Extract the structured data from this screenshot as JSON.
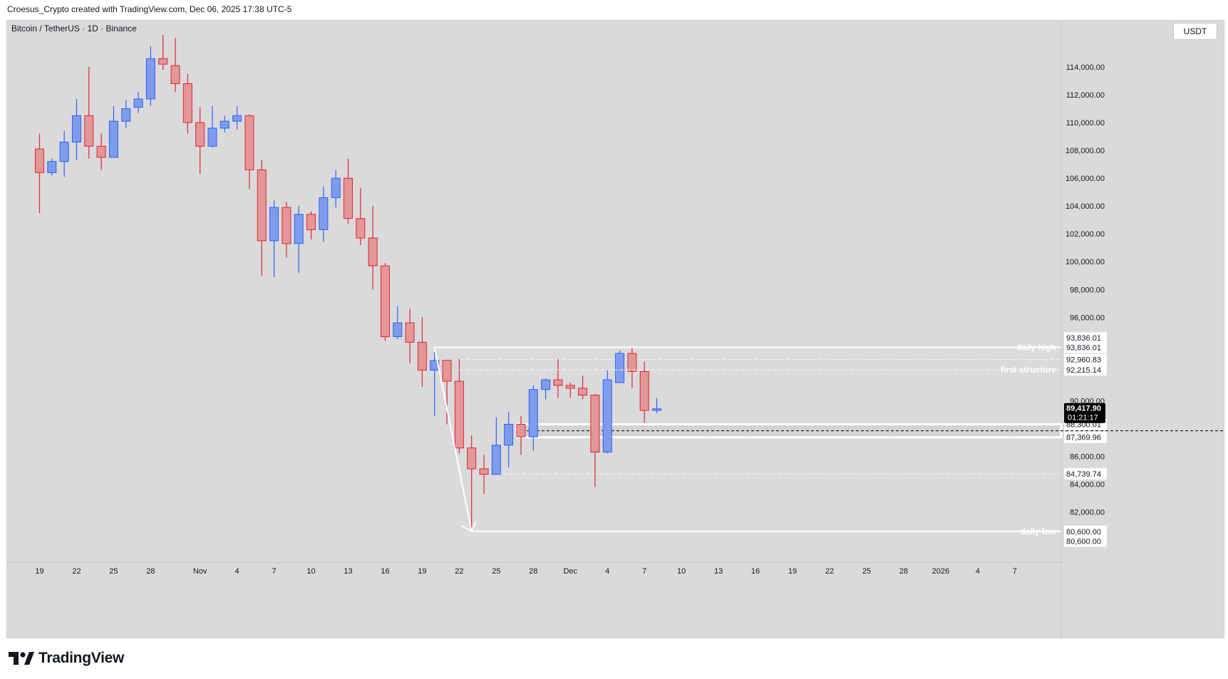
{
  "header": {
    "attribution": "Croesus_Crypto created with TradingView.com, Dec 06, 2025 17:38 UTC-5"
  },
  "symbol": {
    "label": "Bitcoin / TetherUS · 1D · Binance"
  },
  "currency": "USDT",
  "brand": {
    "name": "TradingView"
  },
  "colors": {
    "up": "#7f9ceb",
    "up_border": "#2962ff",
    "down": "#e39798",
    "down_border": "#e0242f",
    "plot_bg": "#dadada",
    "annotation": "#ffffff"
  },
  "chart_data": {
    "type": "candlestick",
    "title": "Bitcoin / TetherUS · 1D · Binance",
    "ylim": [
      79500,
      116500
    ],
    "y_ticks": [
      "114,000.00",
      "112,000.00",
      "110,000.00",
      "108,000.00",
      "106,000.00",
      "104,000.00",
      "102,000.00",
      "100,000.00",
      "98,000.00",
      "96,000.00",
      "90,000.00",
      "86,000.00",
      "84,000.00",
      "82,000.00"
    ],
    "x_ticks": [
      {
        "label": "19",
        "i": 0
      },
      {
        "label": "22",
        "i": 3
      },
      {
        "label": "25",
        "i": 6
      },
      {
        "label": "28",
        "i": 9
      },
      {
        "label": "Nov",
        "i": 13
      },
      {
        "label": "4",
        "i": 16
      },
      {
        "label": "7",
        "i": 19
      },
      {
        "label": "10",
        "i": 22
      },
      {
        "label": "13",
        "i": 25
      },
      {
        "label": "16",
        "i": 28
      },
      {
        "label": "19",
        "i": 31
      },
      {
        "label": "22",
        "i": 34
      },
      {
        "label": "25",
        "i": 37
      },
      {
        "label": "28",
        "i": 40
      },
      {
        "label": "Dec",
        "i": 43
      },
      {
        "label": "4",
        "i": 46
      },
      {
        "label": "7",
        "i": 49
      },
      {
        "label": "10",
        "i": 52
      },
      {
        "label": "13",
        "i": 55
      },
      {
        "label": "16",
        "i": 58
      },
      {
        "label": "19",
        "i": 61
      },
      {
        "label": "22",
        "i": 64
      },
      {
        "label": "25",
        "i": 67
      },
      {
        "label": "28",
        "i": 70
      },
      {
        "label": "2026",
        "i": 73
      },
      {
        "label": "4",
        "i": 76
      },
      {
        "label": "7",
        "i": 79
      }
    ],
    "candles": [
      {
        "o": 108100,
        "h": 109200,
        "l": 103500,
        "c": 106400
      },
      {
        "o": 106400,
        "h": 107400,
        "l": 106200,
        "c": 107200
      },
      {
        "o": 107200,
        "h": 109400,
        "l": 106100,
        "c": 108600
      },
      {
        "o": 108600,
        "h": 111700,
        "l": 107300,
        "c": 110500
      },
      {
        "o": 110500,
        "h": 114000,
        "l": 107400,
        "c": 108300
      },
      {
        "o": 108300,
        "h": 109200,
        "l": 106600,
        "c": 107500
      },
      {
        "o": 107500,
        "h": 111200,
        "l": 107500,
        "c": 110100
      },
      {
        "o": 110100,
        "h": 111600,
        "l": 109600,
        "c": 111000
      },
      {
        "o": 111100,
        "h": 112200,
        "l": 110700,
        "c": 111700
      },
      {
        "o": 111700,
        "h": 115500,
        "l": 111200,
        "c": 114600
      },
      {
        "o": 114600,
        "h": 116300,
        "l": 113800,
        "c": 114200
      },
      {
        "o": 114100,
        "h": 116100,
        "l": 112200,
        "c": 112800
      },
      {
        "o": 112800,
        "h": 113500,
        "l": 109200,
        "c": 110000
      },
      {
        "o": 110000,
        "h": 111100,
        "l": 106300,
        "c": 108300
      },
      {
        "o": 108300,
        "h": 111200,
        "l": 108200,
        "c": 109600
      },
      {
        "o": 109600,
        "h": 110500,
        "l": 109300,
        "c": 110100
      },
      {
        "o": 110100,
        "h": 111200,
        "l": 109500,
        "c": 110500
      },
      {
        "o": 110500,
        "h": 110600,
        "l": 105200,
        "c": 106600
      },
      {
        "o": 106600,
        "h": 107300,
        "l": 99000,
        "c": 101500
      },
      {
        "o": 101500,
        "h": 104400,
        "l": 98900,
        "c": 103900
      },
      {
        "o": 103900,
        "h": 104300,
        "l": 100300,
        "c": 101300
      },
      {
        "o": 101300,
        "h": 104000,
        "l": 99200,
        "c": 103400
      },
      {
        "o": 103400,
        "h": 103600,
        "l": 101600,
        "c": 102300
      },
      {
        "o": 102300,
        "h": 105400,
        "l": 101400,
        "c": 104600
      },
      {
        "o": 104600,
        "h": 106600,
        "l": 103900,
        "c": 106000
      },
      {
        "o": 106000,
        "h": 107400,
        "l": 102700,
        "c": 103100
      },
      {
        "o": 103100,
        "h": 105300,
        "l": 101200,
        "c": 101700
      },
      {
        "o": 101700,
        "h": 104000,
        "l": 98000,
        "c": 99700
      },
      {
        "o": 99700,
        "h": 99900,
        "l": 94300,
        "c": 94600
      },
      {
        "o": 94600,
        "h": 96800,
        "l": 94400,
        "c": 95600
      },
      {
        "o": 95600,
        "h": 96600,
        "l": 92700,
        "c": 94200
      },
      {
        "o": 94200,
        "h": 96000,
        "l": 91000,
        "c": 92200
      },
      {
        "o": 92200,
        "h": 93500,
        "l": 88900,
        "c": 92900
      },
      {
        "o": 92900,
        "h": 92900,
        "l": 88300,
        "c": 91400
      },
      {
        "o": 91400,
        "h": 93000,
        "l": 86200,
        "c": 86600
      },
      {
        "o": 86600,
        "h": 87500,
        "l": 80600,
        "c": 85100
      },
      {
        "o": 85100,
        "h": 86100,
        "l": 83300,
        "c": 84700
      },
      {
        "o": 84700,
        "h": 88800,
        "l": 84700,
        "c": 86800
      },
      {
        "o": 86800,
        "h": 89200,
        "l": 85200,
        "c": 88300
      },
      {
        "o": 88300,
        "h": 88900,
        "l": 86100,
        "c": 87400
      },
      {
        "o": 87400,
        "h": 91100,
        "l": 86400,
        "c": 90800
      },
      {
        "o": 90800,
        "h": 91600,
        "l": 90100,
        "c": 91500
      },
      {
        "o": 91500,
        "h": 93000,
        "l": 90200,
        "c": 91100
      },
      {
        "o": 91100,
        "h": 91300,
        "l": 90200,
        "c": 90900
      },
      {
        "o": 90900,
        "h": 91800,
        "l": 90100,
        "c": 90400
      },
      {
        "o": 90400,
        "h": 90500,
        "l": 83800,
        "c": 86300
      },
      {
        "o": 86300,
        "h": 92200,
        "l": 86200,
        "c": 91500
      },
      {
        "o": 91300,
        "h": 93600,
        "l": 91300,
        "c": 93400
      },
      {
        "o": 93400,
        "h": 93836,
        "l": 90900,
        "c": 92100
      },
      {
        "o": 92100,
        "h": 92800,
        "l": 88400,
        "c": 89300
      },
      {
        "o": 89300,
        "h": 90200,
        "l": 89100,
        "c": 89418
      }
    ],
    "annotations": [
      {
        "label": "daily high",
        "price": 93836.01
      },
      {
        "label": "first structure",
        "price": 92215.14
      },
      {
        "label": "daily low",
        "price": 80600.0
      }
    ],
    "level_lines": [
      92960.83,
      84739.74
    ],
    "zone": {
      "top": 88300.01,
      "bottom": 87369.96
    },
    "price_labels": [
      {
        "text": "93,836.01",
        "price": 94520,
        "style": "plain"
      },
      {
        "text": "93,836.01",
        "price": 93836.01,
        "style": "plain"
      },
      {
        "text": "92,960.83",
        "price": 92960.83,
        "style": "plain"
      },
      {
        "text": "92,215.14",
        "price": 92215.14,
        "style": "plain"
      },
      {
        "text": "88,300.01",
        "price": 88300.01,
        "style": "plain"
      },
      {
        "text": "87,369.96",
        "price": 87369.96,
        "style": "plain"
      },
      {
        "text": "84,739.74",
        "price": 84739.74,
        "style": "plain"
      },
      {
        "text": "80,600.00",
        "price": 80600.0,
        "style": "plain"
      },
      {
        "text": "80,600.00",
        "price": 79900,
        "style": "plain"
      }
    ],
    "last_price": {
      "price": "89,417.90",
      "countdown": "01:21:17",
      "value": 89417.9
    }
  }
}
